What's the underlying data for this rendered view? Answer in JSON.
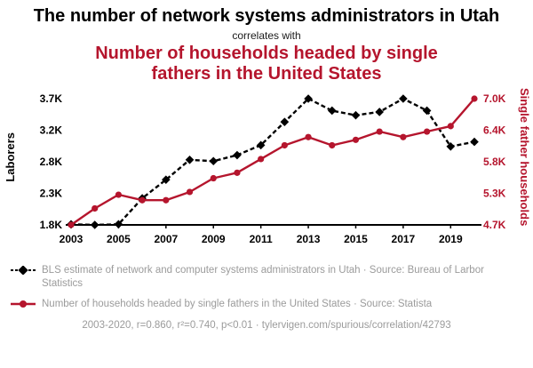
{
  "title": "The number of network systems administrators in Utah",
  "connector": "correlates with",
  "subtitle": "Number of households headed by single fathers in the United States",
  "colors": {
    "accent_red": "#b5152d",
    "series_black": "#000000",
    "muted_gray": "#9b9b9b"
  },
  "chart_data": {
    "type": "line",
    "title": "The number of network systems administrators in Utah correlates with Number of households headed by single fathers in the United States",
    "x": [
      2003,
      2004,
      2005,
      2006,
      2007,
      2008,
      2009,
      2010,
      2011,
      2012,
      2013,
      2014,
      2015,
      2016,
      2017,
      2018,
      2019,
      2020
    ],
    "x_tick_labels": [
      "2003",
      "2005",
      "2007",
      "2009",
      "2011",
      "2013",
      "2015",
      "2017",
      "2019"
    ],
    "left_axis": {
      "label": "Laborers",
      "range": [
        1800,
        3700
      ],
      "tick_labels": [
        "1.8K",
        "2.3K",
        "2.8K",
        "3.2K",
        "3.7K"
      ]
    },
    "right_axis": {
      "label": "Single father households",
      "range": [
        4700,
        7000
      ],
      "tick_labels": [
        "4.7K",
        "5.3K",
        "5.8K",
        "6.4K",
        "7.0K"
      ]
    },
    "series": [
      {
        "name": "BLS estimate of network and computer systems administrators in Utah",
        "axis": "left",
        "color": "#000000",
        "style": "dashed",
        "marker": "diamond",
        "values": [
          1810,
          1800,
          1810,
          2200,
          2480,
          2780,
          2760,
          2850,
          3000,
          3350,
          3700,
          3520,
          3450,
          3500,
          3700,
          3520,
          2980,
          3050
        ]
      },
      {
        "name": "Number of households headed by single fathers in the United States",
        "axis": "right",
        "color": "#b5152d",
        "style": "solid",
        "marker": "circle",
        "values": [
          4700,
          5000,
          5250,
          5150,
          5150,
          5300,
          5550,
          5650,
          5900,
          6150,
          6300,
          6150,
          6250,
          6400,
          6300,
          6400,
          6500,
          7000
        ]
      }
    ],
    "grid": false,
    "legend_position": "bottom"
  },
  "legend": [
    {
      "label": "BLS estimate of network and computer systems administrators in Utah · Source: Bureau of Larbor Statistics"
    },
    {
      "label": "Number of households headed by single fathers in the United States · Source: Statista"
    }
  ],
  "footer": "2003-2020, r=0.860, r²=0.740, p<0.01 · tylervigen.com/spurious/correlation/42793"
}
